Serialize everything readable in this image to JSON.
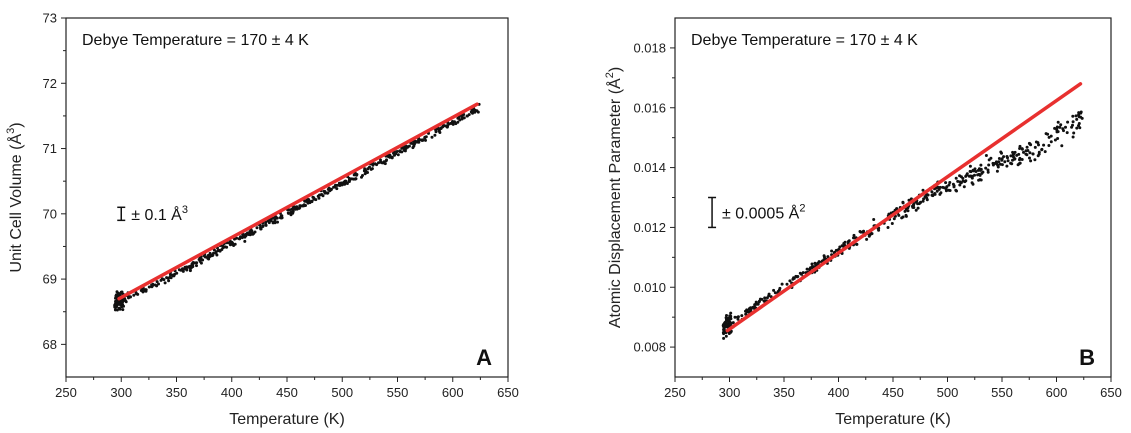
{
  "chart_data": [
    {
      "type": "scatter",
      "panel_label": "A",
      "annotation": "Debye Temperature = 170 ± 4 K",
      "errorbar_label": "± 0.1 Å",
      "errorbar_label_sup": "3",
      "errorbar_half": 0.1,
      "errorbar_at": 70.0,
      "xlabel": "Temperature (K)",
      "ylabel_main": "Unit Cell Volume (Å",
      "ylabel_sup": "3",
      "ylabel_end": ")",
      "xlim": [
        250,
        650
      ],
      "ylim": [
        67.5,
        73
      ],
      "xticks": [
        250,
        300,
        350,
        400,
        450,
        500,
        550,
        600,
        650
      ],
      "yticks": [
        68,
        69,
        70,
        71,
        72,
        73
      ],
      "fit_line": {
        "x": [
          298,
          622
        ],
        "y": [
          68.7,
          71.68
        ],
        "color": "#e8302f"
      },
      "scatter_color": "#111111",
      "series": [
        {
          "x": [
            295,
            300,
            310,
            325,
            350,
            375,
            400,
            425,
            450,
            475,
            500,
            525,
            550,
            575,
            600,
            622
          ],
          "y": [
            68.62,
            68.7,
            68.76,
            68.87,
            69.08,
            69.32,
            69.55,
            69.78,
            70.02,
            70.24,
            70.46,
            70.7,
            70.94,
            71.17,
            71.41,
            71.6
          ]
        }
      ]
    },
    {
      "type": "scatter",
      "panel_label": "B",
      "annotation": "Debye Temperature = 170 ± 4 K",
      "errorbar_label": "± 0.0005 Å",
      "errorbar_label_sup": "2",
      "errorbar_half": 0.0005,
      "errorbar_at": 0.0125,
      "xlabel": "Temperature (K)",
      "ylabel_main": "Atomic Displacement Parameter (Å",
      "ylabel_sup": "2",
      "ylabel_end": ")",
      "xlim": [
        250,
        650
      ],
      "ylim": [
        0.007,
        0.019
      ],
      "xticks": [
        250,
        300,
        350,
        400,
        450,
        500,
        550,
        600,
        650
      ],
      "yticks": [
        0.008,
        0.01,
        0.012,
        0.014,
        0.016,
        0.018
      ],
      "fit_line": {
        "x": [
          298,
          622
        ],
        "y": [
          0.00855,
          0.0168
        ],
        "color": "#e8302f"
      },
      "scatter_color": "#111111",
      "series": [
        {
          "x": [
            295,
            300,
            310,
            325,
            350,
            375,
            400,
            425,
            450,
            475,
            500,
            525,
            550,
            575,
            600,
            622
          ],
          "y": [
            0.0087,
            0.0088,
            0.009,
            0.0094,
            0.01,
            0.0106,
            0.0112,
            0.0118,
            0.0124,
            0.0129,
            0.0134,
            0.0138,
            0.0142,
            0.0145,
            0.0151,
            0.0157
          ]
        }
      ]
    }
  ]
}
